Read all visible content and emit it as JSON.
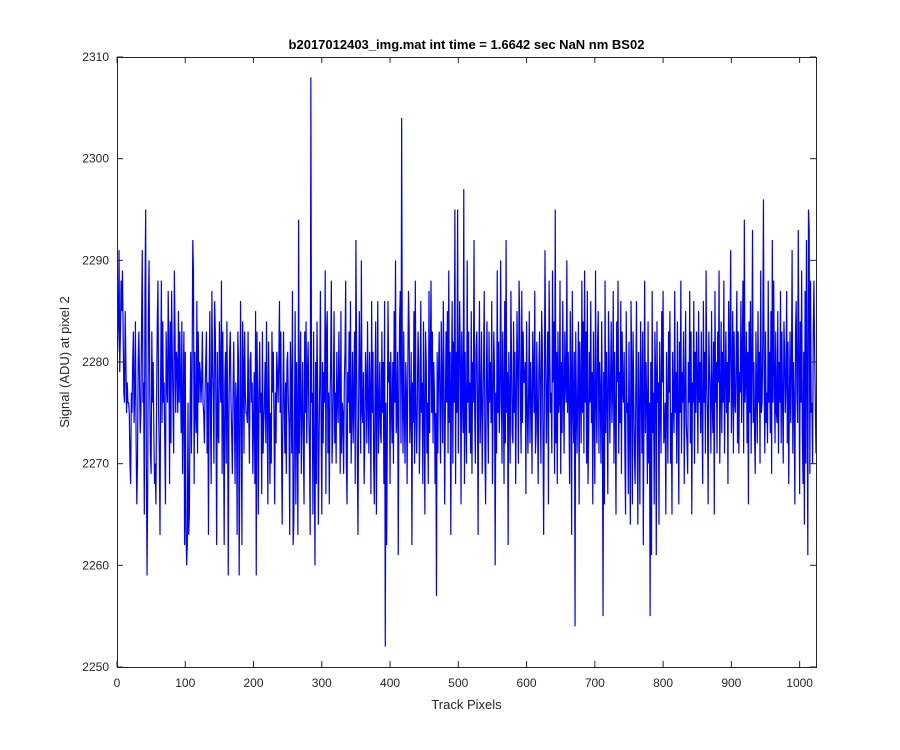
{
  "chart_data": {
    "type": "line",
    "title": "b2017012403_img.mat int time = 1.6642 sec  NaN nm BS02",
    "xlabel": "Track Pixels",
    "ylabel": "Signal (ADU) at pixel 2",
    "xlim": [
      0,
      1024
    ],
    "ylim": [
      2250,
      2310
    ],
    "xticks": [
      0,
      100,
      200,
      300,
      400,
      500,
      600,
      700,
      800,
      900,
      1000
    ],
    "yticks": [
      2250,
      2260,
      2270,
      2280,
      2290,
      2300,
      2310
    ],
    "grid": false,
    "line_color": "#0000ff",
    "series": [
      {
        "x_start": 1,
        "x_step": 1,
        "values": [
          2281,
          2284,
          2291,
          2279,
          2283,
          2288,
          2285,
          2289,
          2283,
          2277,
          2276,
          2285,
          2280,
          2275,
          2278,
          2276,
          2276,
          2275,
          2270,
          2268,
          2277,
          2275,
          2280,
          2283,
          2274,
          2277,
          2284,
          2272,
          2266,
          2270,
          2280,
          2283,
          2278,
          2273,
          2275,
          2284,
          2291,
          2276,
          2278,
          2265,
          2287,
          2295,
          2270,
          2259,
          2268,
          2285,
          2290,
          2277,
          2271,
          2269,
          2283,
          2276,
          2280,
          2273,
          2268,
          2270,
          2266,
          2276,
          2284,
          2288,
          2275,
          2271,
          2263,
          2279,
          2288,
          2274,
          2284,
          2276,
          2278,
          2272,
          2266,
          2283,
          2278,
          2276,
          2287,
          2281,
          2268,
          2284,
          2272,
          2287,
          2281,
          2276,
          2271,
          2289,
          2283,
          2275,
          2281,
          2280,
          2275,
          2285,
          2276,
          2283,
          2278,
          2273,
          2284,
          2269,
          2276,
          2283,
          2262,
          2281,
          2264,
          2260,
          2262,
          2276,
          2263,
          2265,
          2275,
          2281,
          2271,
          2279,
          2292,
          2289,
          2268,
          2281,
          2275,
          2273,
          2286,
          2271,
          2283,
          2276,
          2280,
          2279,
          2276,
          2278,
          2283,
          2276,
          2275,
          2272,
          2277,
          2280,
          2283,
          2271,
          2278,
          2263,
          2278,
          2285,
          2274,
          2268,
          2287,
          2280,
          2277,
          2270,
          2286,
          2283,
          2275,
          2262,
          2281,
          2273,
          2272,
          2284,
          2279,
          2276,
          2288,
          2269,
          2283,
          2274,
          2262,
          2278,
          2281,
          2270,
          2284,
          2276,
          2259,
          2275,
          2281,
          2283,
          2276,
          2273,
          2269,
          2277,
          2282,
          2275,
          2268,
          2278,
          2276,
          2263,
          2283,
          2280,
          2259,
          2272,
          2286,
          2275,
          2262,
          2284,
          2280,
          2271,
          2283,
          2277,
          2275,
          2275,
          2274,
          2283,
          2275,
          2270,
          2280,
          2281,
          2276,
          2278,
          2269,
          2274,
          2279,
          2268,
          2285,
          2259,
          2283,
          2277,
          2265,
          2276,
          2282,
          2275,
          2277,
          2267,
          2283,
          2271,
          2274,
          2276,
          2280,
          2272,
          2284,
          2275,
          2266,
          2282,
          2277,
          2268,
          2275,
          2270,
          2283,
          2277,
          2281,
          2274,
          2266,
          2277,
          2272,
          2281,
          2279,
          2276,
          2280,
          2286,
          2275,
          2283,
          2272,
          2264,
          2276,
          2283,
          2275,
          2271,
          2278,
          2269,
          2280,
          2281,
          2276,
          2274,
          2263,
          2282,
          2278,
          2271,
          2287,
          2262,
          2264,
          2274,
          2285,
          2266,
          2280,
          2274,
          2263,
          2294,
          2271,
          2277,
          2283,
          2269,
          2275,
          2280,
          2272,
          2266,
          2283,
          2275,
          2284,
          2272,
          2279,
          2282,
          2275,
          2271,
          2263,
          2308,
          2276,
          2277,
          2265,
          2283,
          2271,
          2260,
          2280,
          2268,
          2284,
          2277,
          2264,
          2272,
          2278,
          2287,
          2274,
          2265,
          2280,
          2272,
          2279,
          2276,
          2289,
          2267,
          2283,
          2285,
          2271,
          2277,
          2266,
          2276,
          2280,
          2288,
          2270,
          2273,
          2278,
          2285,
          2272,
          2277,
          2270,
          2281,
          2276,
          2274,
          2283,
          2278,
          2269,
          2285,
          2271,
          2276,
          2275,
          2269,
          2278,
          2281,
          2288,
          2270,
          2266,
          2279,
          2276,
          2283,
          2273,
          2286,
          2270,
          2275,
          2281,
          2272,
          2277,
          2283,
          2268,
          2292,
          2280,
          2271,
          2263,
          2276,
          2285,
          2279,
          2271,
          2290,
          2275,
          2274,
          2279,
          2268,
          2272,
          2281,
          2278,
          2272,
          2284,
          2276,
          2271,
          2281,
          2277,
          2267,
          2286,
          2275,
          2281,
          2270,
          2266,
          2278,
          2284,
          2265,
          2276,
          2286,
          2271,
          2275,
          2280,
          2273,
          2272,
          2283,
          2275,
          2280,
          2268,
          2286,
          2252,
          2276,
          2262,
          2273,
          2286,
          2278,
          2280,
          2268,
          2281,
          2276,
          2272,
          2280,
          2270,
          2285,
          2276,
          2290,
          2273,
          2275,
          2281,
          2261,
          2276,
          2284,
          2287,
          2272,
          2304,
          2278,
          2271,
          2283,
          2275,
          2270,
          2280,
          2277,
          2268,
          2279,
          2287,
          2283,
          2272,
          2275,
          2281,
          2262,
          2278,
          2274,
          2285,
          2270,
          2288,
          2275,
          2271,
          2276,
          2283,
          2280,
          2269,
          2274,
          2286,
          2275,
          2278,
          2268,
          2284,
          2275,
          2265,
          2283,
          2280,
          2271,
          2276,
          2268,
          2287,
          2273,
          2281,
          2288,
          2275,
          2283,
          2272,
          2280,
          2277,
          2268,
          2275,
          2257,
          2281,
          2271,
          2279,
          2283,
          2276,
          2270,
          2284,
          2278,
          2272,
          2286,
          2279,
          2266,
          2275,
          2283,
          2276,
          2285,
          2271,
          2289,
          2274,
          2281,
          2263,
          2278,
          2286,
          2270,
          2282,
          2276,
          2295,
          2268,
          2281,
          2275,
          2295,
          2271,
          2278,
          2286,
          2280,
          2266,
          2283,
          2277,
          2273,
          2297,
          2268,
          2281,
          2275,
          2270,
          2290,
          2276,
          2283,
          2273,
          2278,
          2271,
          2285,
          2269,
          2280,
          2276,
          2292,
          2275,
          2270,
          2281,
          2283,
          2277,
          2263,
          2279,
          2286,
          2272,
          2276,
          2283,
          2269,
          2275,
          2280,
          2287,
          2271,
          2266,
          2278,
          2284,
          2275,
          2270,
          2283,
          2276,
          2280,
          2274,
          2286,
          2268,
          2276,
          2283,
          2279,
          2260,
          2277,
          2271,
          2289,
          2275,
          2282,
          2273,
          2276,
          2290,
          2278,
          2270,
          2283,
          2277,
          2268,
          2286,
          2272,
          2292,
          2275,
          2279,
          2262,
          2281,
          2276,
          2270,
          2287,
          2280,
          2273,
          2272,
          2284,
          2275,
          2281,
          2268,
          2276,
          2285,
          2279,
          2270,
          2288,
          2284,
          2276,
          2271,
          2287,
          2274,
          2283,
          2278,
          2278,
          2280,
          2267,
          2284,
          2276,
          2271,
          2277,
          2285,
          2272,
          2280,
          2276,
          2269,
          2283,
          2279,
          2275,
          2287,
          2271,
          2273,
          2282,
          2275,
          2268,
          2279,
          2283,
          2277,
          2270,
          2285,
          2282,
          2273,
          2263,
          2276,
          2291,
          2280,
          2272,
          2277,
          2283,
          2266,
          2288,
          2281,
          2275,
          2277,
          2271,
          2289,
          2278,
          2284,
          2269,
          2295,
          2272,
          2281,
          2268,
          2283,
          2275,
          2276,
          2288,
          2269,
          2280,
          2273,
          2286,
          2277,
          2271,
          2283,
          2278,
          2276,
          2290,
          2275,
          2281,
          2276,
          2268,
          2285,
          2279,
          2263,
          2287,
          2276,
          2272,
          2281,
          2254,
          2283,
          2276,
          2271,
          2278,
          2284,
          2266,
          2282,
          2277,
          2272,
          2288,
          2275,
          2284,
          2271,
          2289,
          2276,
          2283,
          2270,
          2287,
          2268,
          2273,
          2281,
          2276,
          2286,
          2274,
          2279,
          2266,
          2283,
          2275,
          2268,
          2289,
          2276,
          2272,
          2282,
          2285,
          2271,
          2280,
          2277,
          2270,
          2284,
          2276,
          2255,
          2279,
          2266,
          2288,
          2273,
          2281,
          2276,
          2267,
          2285,
          2280,
          2272,
          2278,
          2284,
          2274,
          2277,
          2287,
          2270,
          2281,
          2275,
          2265,
          2284,
          2278,
          2288,
          2271,
          2279,
          2274,
          2286,
          2269,
          2283,
          2277,
          2276,
          2281,
          2271,
          2265,
          2285,
          2275,
          2276,
          2267,
          2282,
          2273,
          2264,
          2286,
          2280,
          2266,
          2283,
          2277,
          2271,
          2268,
          2277,
          2286,
          2273,
          2264,
          2281,
          2275,
          2266,
          2284,
          2278,
          2271,
          2283,
          2262,
          2276,
          2288,
          2273,
          2280,
          2276,
          2268,
          2284,
          2270,
          2276,
          2255,
          2280,
          2261,
          2287,
          2273,
          2277,
          2266,
          2283,
          2279,
          2261,
          2284,
          2276,
          2278,
          2264,
          2282,
          2276,
          2271,
          2285,
          2278,
          2287,
          2272,
          2273,
          2276,
          2265,
          2281,
          2276,
          2270,
          2283,
          2277,
          2285,
          2270,
          2275,
          2265,
          2281,
          2276,
          2273,
          2287,
          2275,
          2279,
          2270,
          2284,
          2276,
          2266,
          2282,
          2275,
          2288,
          2271,
          2279,
          2276,
          2283,
          2268,
          2277,
          2285,
          2274,
          2272,
          2269,
          2280,
          2276,
          2287,
          2272,
          2283,
          2265,
          2278,
          2276,
          2286,
          2270,
          2281,
          2275,
          2283,
          2278,
          2271,
          2285,
          2276,
          2280,
          2273,
          2283,
          2275,
          2268,
          2286,
          2276,
          2281,
          2271,
          2289,
          2278,
          2275,
          2266,
          2283,
          2279,
          2277,
          2271,
          2285,
          2276,
          2273,
          2282,
          2265,
          2287,
          2276,
          2280,
          2271,
          2283,
          2278,
          2289,
          2270,
          2276,
          2284,
          2273,
          2281,
          2276,
          2288,
          2271,
          2278,
          2283,
          2275,
          2280,
          2268,
          2286,
          2276,
          2282,
          2291,
          2273,
          2277,
          2285,
          2271,
          2283,
          2276,
          2275,
          2280,
          2287,
          2272,
          2283,
          2271,
          2279,
          2277,
          2286,
          2274,
          2281,
          2288,
          2271,
          2294,
          2276,
          2278,
          2283,
          2272,
          2281,
          2266,
          2284,
          2275,
          2286,
          2271,
          2280,
          2293,
          2274,
          2280,
          2273,
          2269,
          2283,
          2277,
          2272,
          2285,
          2276,
          2281,
          2270,
          2289,
          2275,
          2276,
          2282,
          2296,
          2279,
          2271,
          2283,
          2274,
          2277,
          2272,
          2288,
          2276,
          2281,
          2273,
          2285,
          2269,
          2292,
          2276,
          2288,
          2279,
          2272,
          2283,
          2275,
          2274,
          2285,
          2271,
          2280,
          2276,
          2287,
          2272,
          2283,
          2276,
          2270,
          2284,
          2281,
          2275,
          2278,
          2287,
          2272,
          2282,
          2268,
          2276,
          2283,
          2274,
          2279,
          2291,
          2271,
          2280,
          2276,
          2266,
          2283,
          2286,
          2277,
          2274,
          2293,
          2281,
          2267,
          2284,
          2276,
          2289,
          2273,
          2268,
          2281,
          2264,
          2287,
          2270,
          2292,
          2278,
          2261,
          2295,
          2293,
          2269,
          2288,
          2275,
          2276,
          2270,
          2283,
          2288,
          2281,
          2276,
          2271
        ]
      }
    ]
  }
}
